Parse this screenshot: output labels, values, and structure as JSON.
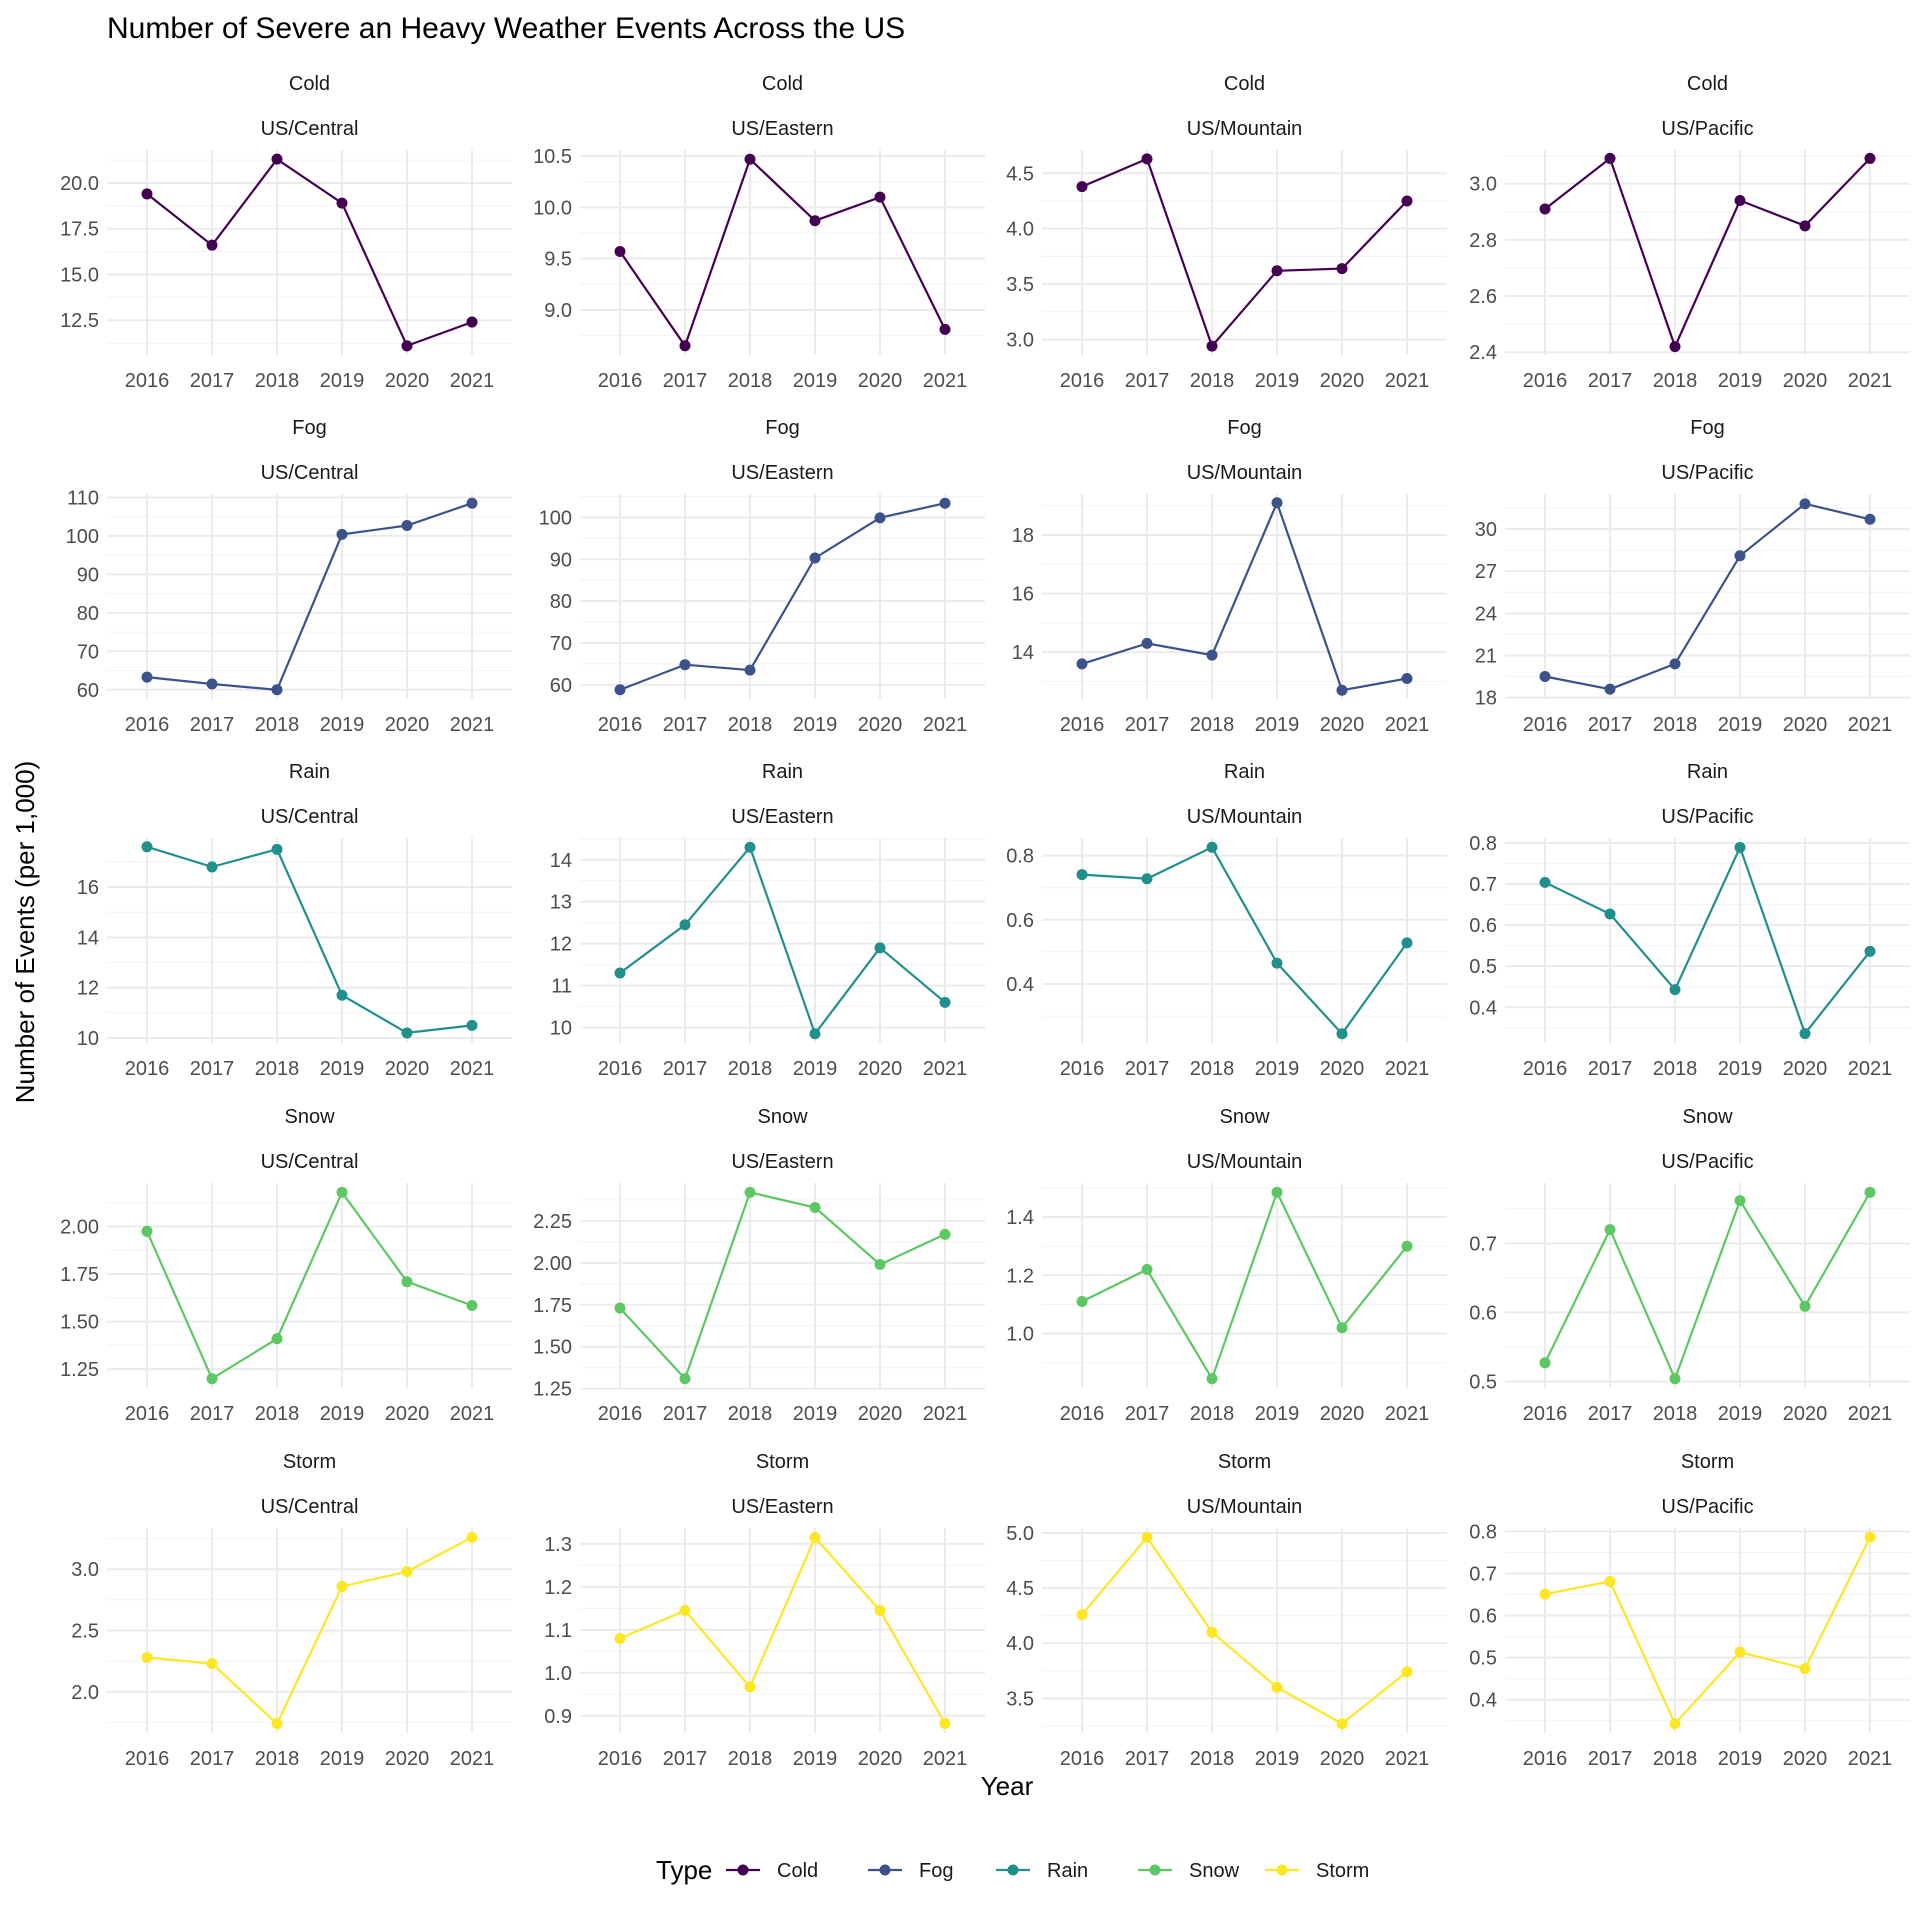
{
  "chart_data": {
    "type": "line",
    "title": "Number of Severe an Heavy Weather Events Across the US",
    "xlabel": "Year",
    "ylabel": "Number of Events (per 1,000)",
    "x": [
      "2016",
      "2017",
      "2018",
      "2019",
      "2020",
      "2021"
    ],
    "grid": true,
    "legend": {
      "title": "Type",
      "position": "bottom",
      "entries": [
        {
          "name": "Cold",
          "color": "#440154"
        },
        {
          "name": "Fog",
          "color": "#3B528B"
        },
        {
          "name": "Rain",
          "color": "#21908C"
        },
        {
          "name": "Snow",
          "color": "#5DC863"
        },
        {
          "name": "Storm",
          "color": "#FDE725"
        }
      ]
    },
    "panels": [
      {
        "type": "Cold",
        "timezone": "US/Central",
        "values": [
          19.4,
          16.6,
          21.3,
          18.9,
          11.1,
          12.4
        ],
        "yticks": [
          12.5,
          15.0,
          17.5,
          20.0
        ],
        "ylim": [
          10.6,
          21.8
        ]
      },
      {
        "type": "Cold",
        "timezone": "US/Eastern",
        "values": [
          9.57,
          8.65,
          10.47,
          9.87,
          10.1,
          8.81
        ],
        "yticks": [
          9.0,
          9.5,
          10.0,
          10.5
        ],
        "ylim": [
          8.56,
          10.56
        ]
      },
      {
        "type": "Cold",
        "timezone": "US/Mountain",
        "values": [
          4.38,
          4.63,
          2.94,
          3.62,
          3.64,
          4.25
        ],
        "yticks": [
          3.0,
          3.5,
          4.0,
          4.5
        ],
        "ylim": [
          2.86,
          4.71
        ]
      },
      {
        "type": "Cold",
        "timezone": "US/Pacific",
        "values": [
          2.91,
          3.09,
          2.42,
          2.94,
          2.85,
          3.09
        ],
        "yticks": [
          2.4,
          2.6,
          2.8,
          3.0
        ],
        "ylim": [
          2.39,
          3.12
        ]
      },
      {
        "type": "Fog",
        "timezone": "US/Central",
        "values": [
          63.3,
          61.5,
          60.0,
          100.4,
          102.7,
          108.5
        ],
        "yticks": [
          60,
          70,
          80,
          90,
          100,
          110
        ],
        "ylim": [
          57.6,
          110.9
        ]
      },
      {
        "type": "Fog",
        "timezone": "US/Eastern",
        "values": [
          58.8,
          64.8,
          63.5,
          90.3,
          99.9,
          103.4
        ],
        "yticks": [
          60,
          70,
          80,
          90,
          100
        ],
        "ylim": [
          56.6,
          105.6
        ]
      },
      {
        "type": "Fog",
        "timezone": "US/Mountain",
        "values": [
          13.6,
          14.3,
          13.9,
          19.1,
          12.7,
          13.1
        ],
        "yticks": [
          14,
          16,
          18
        ],
        "ylim": [
          12.4,
          19.4
        ]
      },
      {
        "type": "Fog",
        "timezone": "US/Pacific",
        "values": [
          19.5,
          18.6,
          20.4,
          28.1,
          31.8,
          30.7
        ],
        "yticks": [
          18,
          21,
          24,
          27,
          30
        ],
        "ylim": [
          17.9,
          32.5
        ]
      },
      {
        "type": "Rain",
        "timezone": "US/Central",
        "values": [
          17.6,
          16.8,
          17.5,
          11.7,
          10.2,
          10.5
        ],
        "yticks": [
          10,
          12,
          14,
          16
        ],
        "ylim": [
          9.8,
          17.95
        ]
      },
      {
        "type": "Rain",
        "timezone": "US/Eastern",
        "values": [
          11.3,
          12.45,
          14.3,
          9.85,
          11.9,
          10.6
        ],
        "yticks": [
          10,
          11,
          12,
          13,
          14
        ],
        "ylim": [
          9.63,
          14.52
        ]
      },
      {
        "type": "Rain",
        "timezone": "US/Mountain",
        "values": [
          0.741,
          0.728,
          0.826,
          0.465,
          0.245,
          0.528
        ],
        "yticks": [
          0.4,
          0.6,
          0.8
        ],
        "ylim": [
          0.216,
          0.855
        ]
      },
      {
        "type": "Rain",
        "timezone": "US/Pacific",
        "values": [
          0.704,
          0.627,
          0.443,
          0.789,
          0.336,
          0.536
        ],
        "yticks": [
          0.4,
          0.5,
          0.6,
          0.7,
          0.8
        ],
        "ylim": [
          0.313,
          0.812
        ]
      },
      {
        "type": "Snow",
        "timezone": "US/Central",
        "values": [
          1.975,
          1.2,
          1.41,
          2.18,
          1.71,
          1.585
        ],
        "yticks": [
          1.25,
          1.5,
          1.75,
          2.0
        ],
        "ylim": [
          1.151,
          2.229
        ]
      },
      {
        "type": "Snow",
        "timezone": "US/Eastern",
        "values": [
          1.73,
          1.31,
          2.42,
          2.33,
          1.99,
          2.17
        ],
        "yticks": [
          1.25,
          1.5,
          1.75,
          2.0,
          2.25
        ],
        "ylim": [
          1.254,
          2.476
        ]
      },
      {
        "type": "Snow",
        "timezone": "US/Mountain",
        "values": [
          1.11,
          1.22,
          0.845,
          1.485,
          1.02,
          1.3
        ],
        "yticks": [
          1.0,
          1.2,
          1.4
        ],
        "ylim": [
          0.813,
          1.517
        ]
      },
      {
        "type": "Snow",
        "timezone": "US/Pacific",
        "values": [
          0.527,
          0.72,
          0.504,
          0.762,
          0.609,
          0.774
        ],
        "yticks": [
          0.5,
          0.6,
          0.7
        ],
        "ylim": [
          0.4905,
          0.7875
        ]
      },
      {
        "type": "Storm",
        "timezone": "US/Central",
        "values": [
          2.28,
          2.23,
          1.74,
          2.86,
          2.98,
          3.26
        ],
        "yticks": [
          2.0,
          2.5,
          3.0
        ],
        "ylim": [
          1.664,
          3.336
        ]
      },
      {
        "type": "Storm",
        "timezone": "US/Eastern",
        "values": [
          1.08,
          1.145,
          0.967,
          1.315,
          1.145,
          0.882
        ],
        "yticks": [
          0.9,
          1.0,
          1.1,
          1.2,
          1.3
        ],
        "ylim": [
          0.86,
          1.337
        ]
      },
      {
        "type": "Storm",
        "timezone": "US/Mountain",
        "values": [
          4.26,
          4.96,
          4.1,
          3.6,
          3.27,
          3.74
        ],
        "yticks": [
          3.5,
          4.0,
          4.5,
          5.0
        ],
        "ylim": [
          3.186,
          5.045
        ]
      },
      {
        "type": "Storm",
        "timezone": "US/Pacific",
        "values": [
          0.651,
          0.681,
          0.343,
          0.513,
          0.474,
          0.786
        ],
        "yticks": [
          0.4,
          0.5,
          0.6,
          0.7,
          0.8
        ],
        "ylim": [
          0.321,
          0.808
        ]
      }
    ]
  }
}
